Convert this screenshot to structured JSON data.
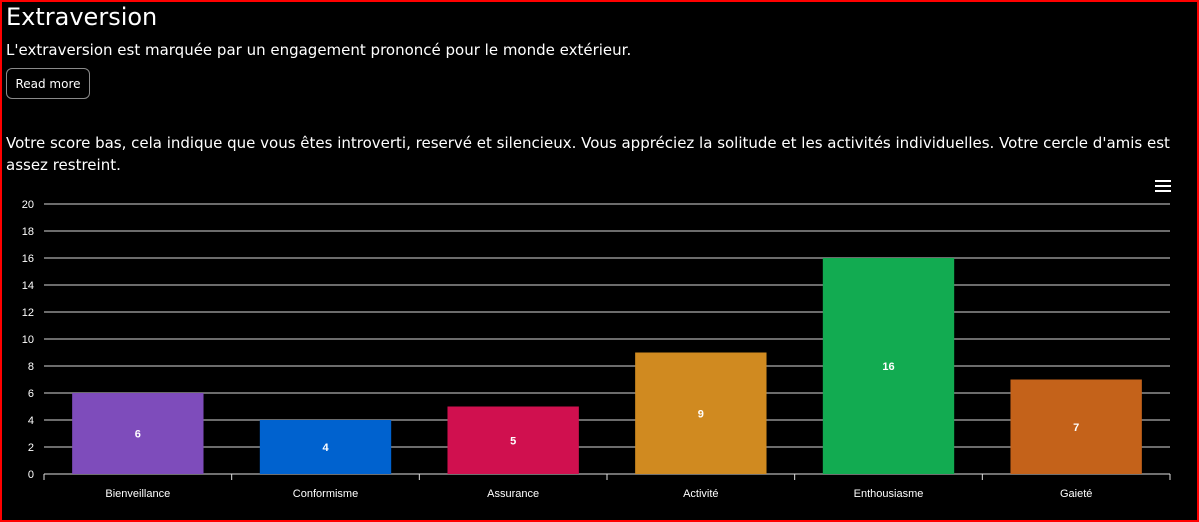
{
  "page": {
    "title": "Extraversion",
    "description": "L'extraversion est marquée par un engagement prononcé pour le monde extérieur.",
    "read_more_label": "Read more",
    "score_text": "Votre score bas, cela indique que vous êtes introverti, reservé et silencieux. Vous appréciez la solitude et les activités individuelles. Votre cercle d'amis est assez restreint.",
    "menu_icon": "hamburger-menu-icon"
  },
  "chart_data": {
    "type": "bar",
    "categories": [
      "Bienveillance",
      "Conformisme",
      "Assurance",
      "Activité",
      "Enthousiasme",
      "Gaieté"
    ],
    "values": [
      6,
      4,
      5,
      9,
      16,
      7
    ],
    "colors": [
      "#7e4cbb",
      "#0062cf",
      "#d0104f",
      "#d08a20",
      "#12ab51",
      "#c4621a"
    ],
    "ylim": [
      0,
      20
    ],
    "yticks": [
      0,
      2,
      4,
      6,
      8,
      10,
      12,
      14,
      16,
      18,
      20
    ],
    "grid": true,
    "data_labels": true
  }
}
